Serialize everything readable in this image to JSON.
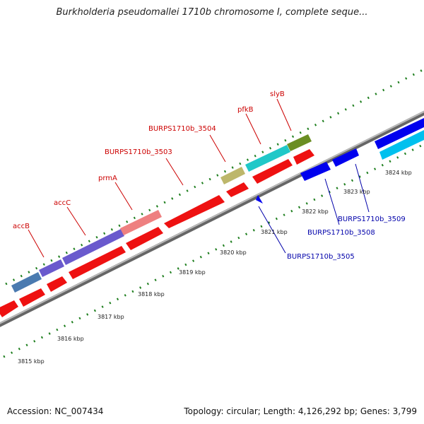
{
  "title": "Burkholderia pseudomallei 1710b chromosome I, complete seque...",
  "accession_label": "Accession: NC_007434",
  "summary": "Topology: circular; Length: 4,126,292 bp; Genes: 3,799",
  "colors": {
    "forward_label": "#cc0000",
    "reverse_label": "#0000aa",
    "tick": "#1f7f1f",
    "backbone": "#888888"
  },
  "scale_labels": [
    "3815 kbp",
    "3816 kbp",
    "3817 kbp",
    "3818 kbp",
    "3819 kbp",
    "3820 kbp",
    "3821 kbp",
    "3822 kbp",
    "3823 kbp",
    "3824 kbp"
  ],
  "forward_genes": [
    {
      "label": "accB"
    },
    {
      "label": "accC"
    },
    {
      "label": "prmA"
    },
    {
      "label": "BURPS1710b_3503"
    },
    {
      "label": "BURPS1710b_3504"
    },
    {
      "label": "pfkB"
    },
    {
      "label": "slyB"
    }
  ],
  "reverse_genes": [
    {
      "label": "BURPS1710b_3505"
    },
    {
      "label": "BURPS1710b_3508"
    },
    {
      "label": "BURPS1710b_3509"
    }
  ]
}
